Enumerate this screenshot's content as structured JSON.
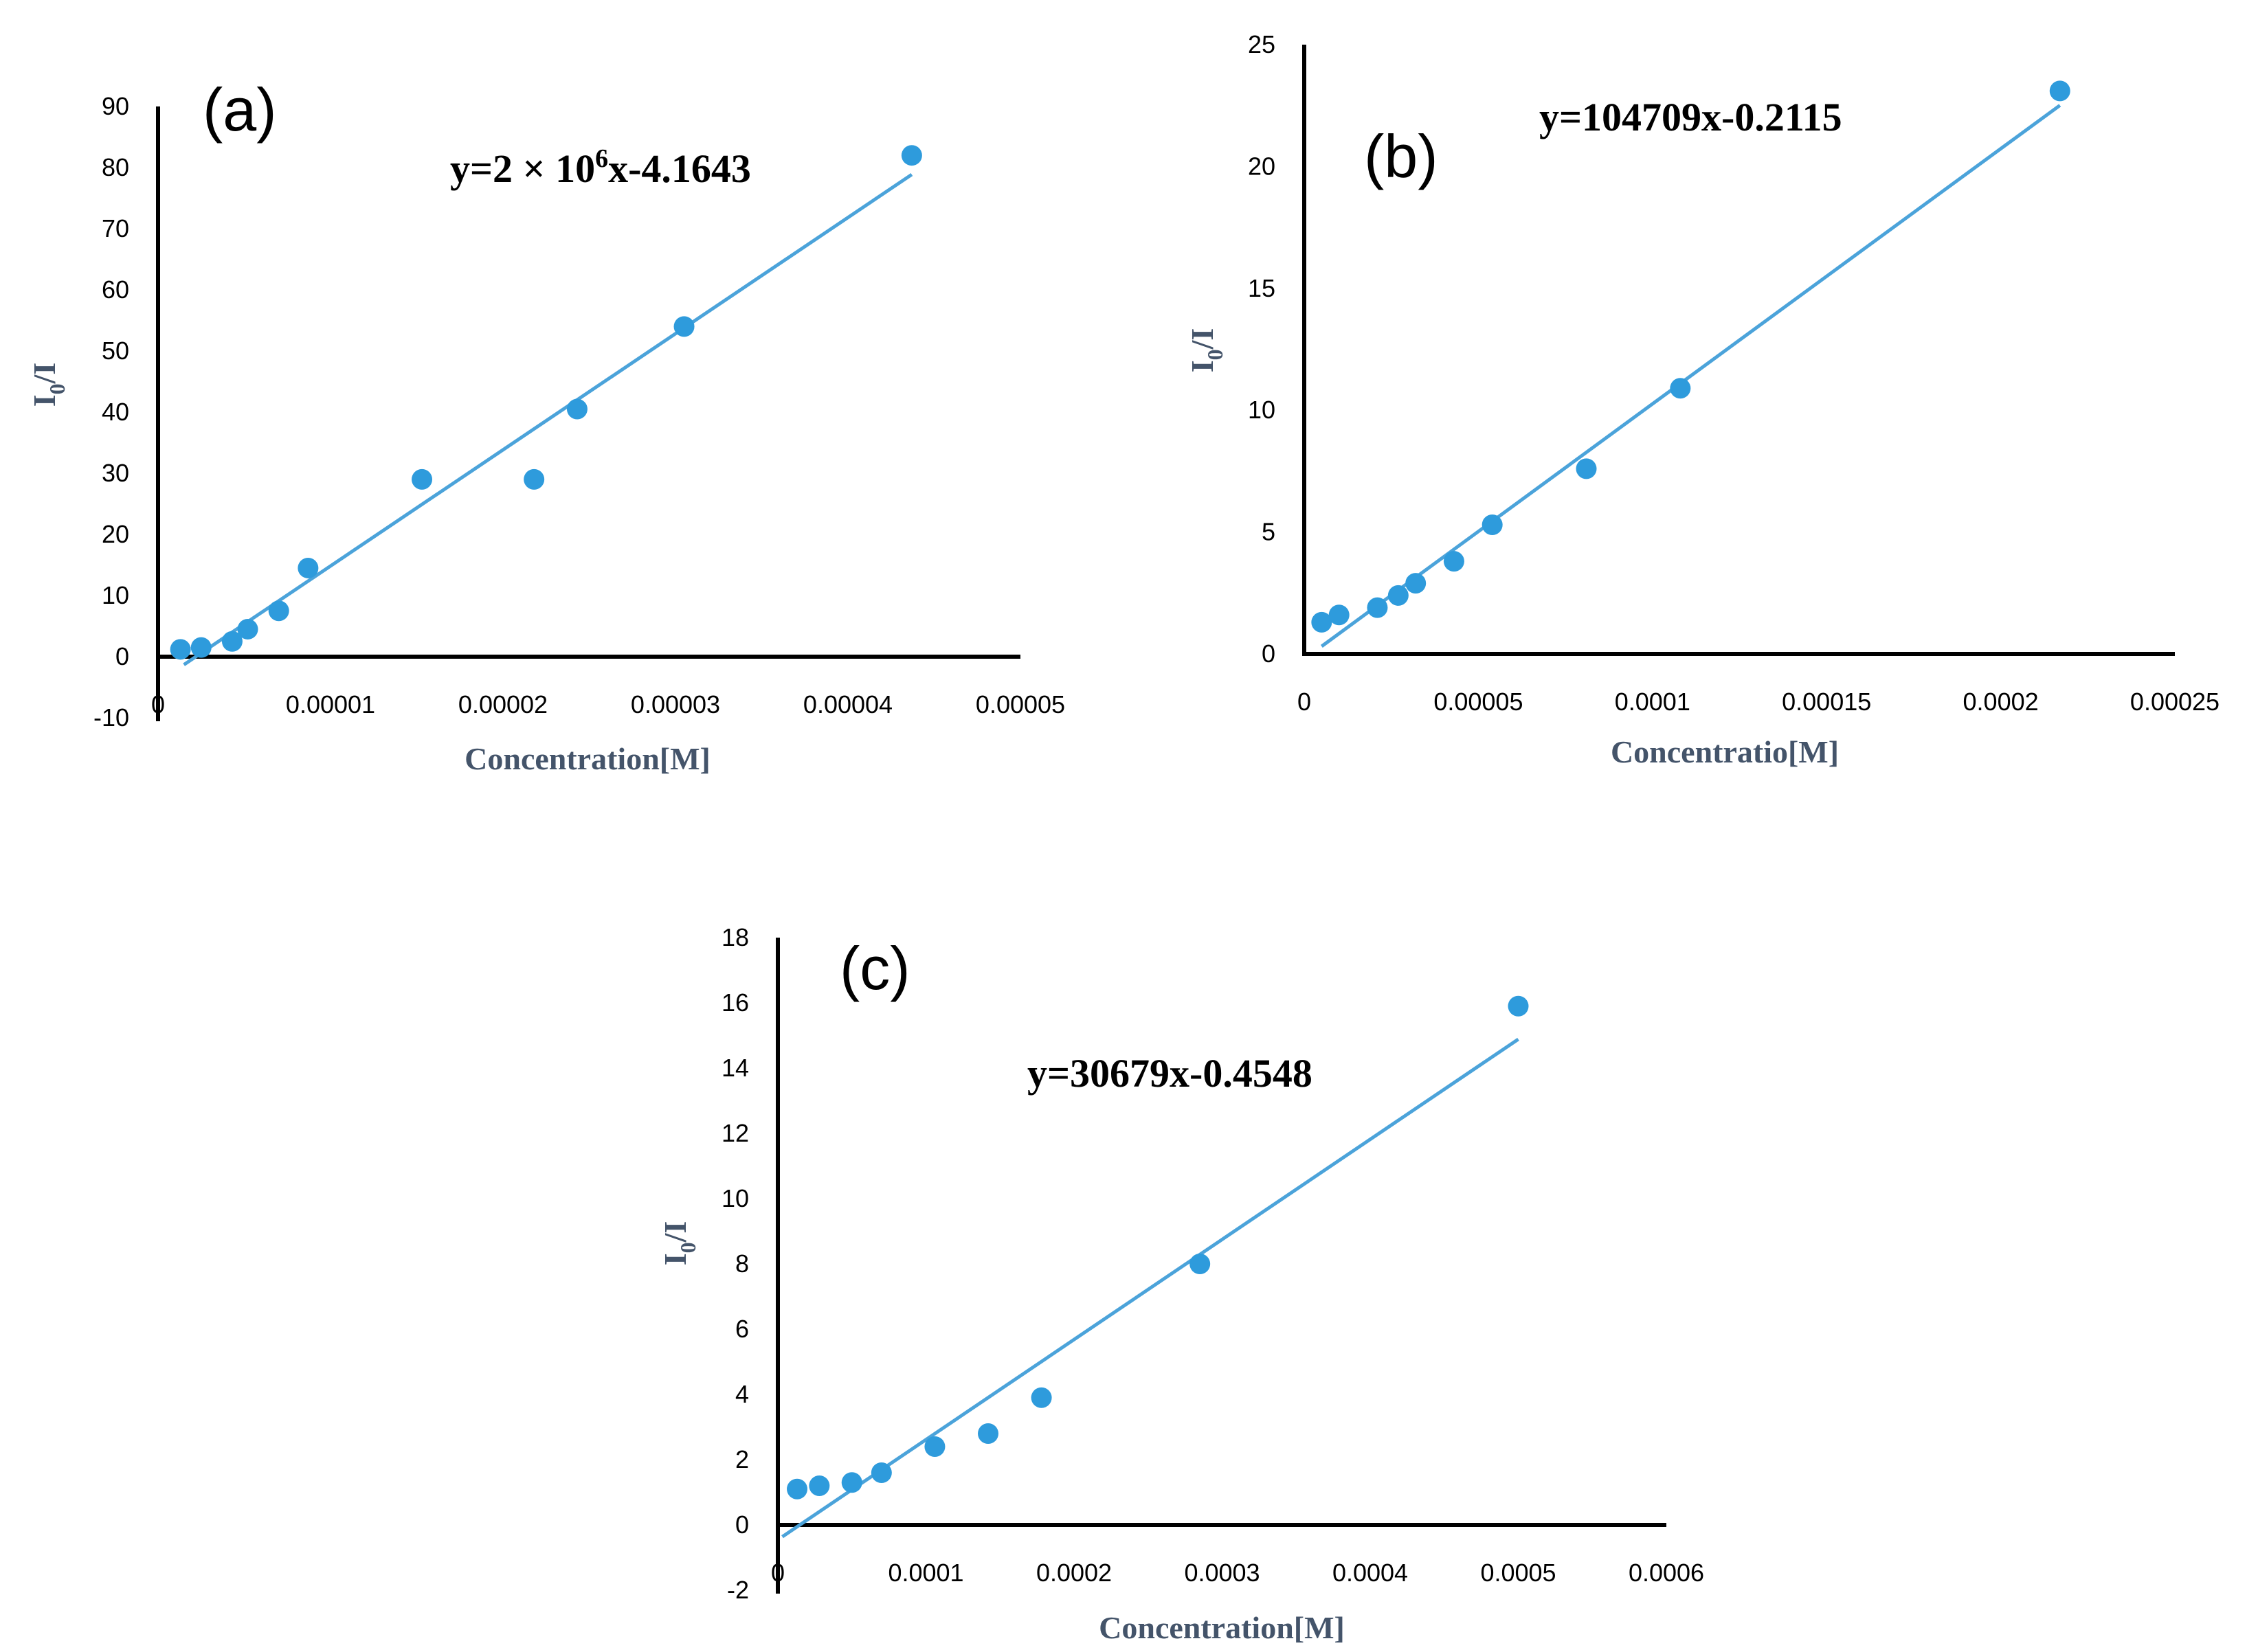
{
  "chart_data": [
    {
      "type": "scatter",
      "panel_label": "(a)",
      "equation": {
        "prefix": "y=2 × 10",
        "superscript": "6",
        "suffix": "x-4.1643"
      },
      "xlabel": "Concentration[M]",
      "ylabel": {
        "main": "I",
        "sub": "0",
        "rest": "/I"
      },
      "xlim": [
        0,
        5e-05
      ],
      "ylim": [
        -10,
        90
      ],
      "x_ticks": [
        0,
        1e-05,
        2e-05,
        3e-05,
        4e-05,
        5e-05
      ],
      "x_tick_labels": [
        "0",
        "0.00001",
        "0.00002",
        "0.00003",
        "0.00004",
        "0.00005"
      ],
      "y_ticks": [
        -10,
        0,
        10,
        20,
        30,
        40,
        50,
        60,
        70,
        80,
        90
      ],
      "y_tick_labels": [
        "-10",
        "0",
        "10",
        "20",
        "30",
        "40",
        "50",
        "60",
        "70",
        "80",
        "90"
      ],
      "x_axis_at": 0,
      "points": [
        {
          "x": 1.3e-06,
          "y": 1.2
        },
        {
          "x": 2.5e-06,
          "y": 1.5
        },
        {
          "x": 4.3e-06,
          "y": 2.5
        },
        {
          "x": 5.2e-06,
          "y": 4.5
        },
        {
          "x": 7e-06,
          "y": 7.5
        },
        {
          "x": 8.7e-06,
          "y": 14.5
        },
        {
          "x": 1.53e-05,
          "y": 29
        },
        {
          "x": 2.18e-05,
          "y": 29
        },
        {
          "x": 2.43e-05,
          "y": 40.5
        },
        {
          "x": 3.05e-05,
          "y": 54
        },
        {
          "x": 4.37e-05,
          "y": 82
        }
      ],
      "fit": {
        "slope": 1900000,
        "intercept": -4.1643,
        "x_range": [
          1.5e-06,
          4.37e-05
        ]
      }
    },
    {
      "type": "scatter",
      "panel_label": "(b)",
      "equation": {
        "prefix": "y=104709x-0.2115",
        "superscript": "",
        "suffix": ""
      },
      "xlabel": "Concentratio[M]",
      "ylabel": {
        "main": "I",
        "sub": "0",
        "rest": "/I"
      },
      "xlim": [
        0,
        0.00025
      ],
      "ylim": [
        0,
        25
      ],
      "x_ticks": [
        0,
        5e-05,
        0.0001,
        0.00015,
        0.0002,
        0.00025
      ],
      "x_tick_labels": [
        "0",
        "0.00005",
        "0.0001",
        "0.00015",
        "0.0002",
        "0.00025"
      ],
      "y_ticks": [
        0,
        5,
        10,
        15,
        20,
        25
      ],
      "y_tick_labels": [
        "0",
        "5",
        "10",
        "15",
        "20",
        "25"
      ],
      "x_axis_at": 0,
      "points": [
        {
          "x": 5e-06,
          "y": 1.3
        },
        {
          "x": 1e-05,
          "y": 1.6
        },
        {
          "x": 2.1e-05,
          "y": 1.9
        },
        {
          "x": 2.7e-05,
          "y": 2.4
        },
        {
          "x": 3.2e-05,
          "y": 2.9
        },
        {
          "x": 4.3e-05,
          "y": 3.8
        },
        {
          "x": 5.4e-05,
          "y": 5.3
        },
        {
          "x": 8.1e-05,
          "y": 7.6
        },
        {
          "x": 0.000108,
          "y": 10.9
        },
        {
          "x": 0.000217,
          "y": 23.1
        }
      ],
      "fit": {
        "slope": 104709,
        "intercept": -0.2115,
        "x_range": [
          5e-06,
          0.000217
        ]
      }
    },
    {
      "type": "scatter",
      "panel_label": "(c)",
      "equation": {
        "prefix": "y=30679x-0.4548",
        "superscript": "",
        "suffix": ""
      },
      "xlabel": "Concentration[M]",
      "ylabel": {
        "main": "I",
        "sub": "0",
        "rest": "/I"
      },
      "xlim": [
        0,
        0.0006
      ],
      "ylim": [
        -2,
        18
      ],
      "x_ticks": [
        0,
        0.0001,
        0.0002,
        0.0003,
        0.0004,
        0.0005,
        0.0006
      ],
      "x_tick_labels": [
        "0",
        "0.0001",
        "0.0002",
        "0.0003",
        "0.0004",
        "0.0005",
        "0.0006"
      ],
      "y_ticks": [
        -2,
        0,
        2,
        4,
        6,
        8,
        10,
        12,
        14,
        16,
        18
      ],
      "y_tick_labels": [
        "-2",
        "0",
        "2",
        "4",
        "6",
        "8",
        "10",
        "12",
        "14",
        "16",
        "18"
      ],
      "x_axis_at": 0,
      "points": [
        {
          "x": 1.3e-05,
          "y": 1.1
        },
        {
          "x": 2.8e-05,
          "y": 1.2
        },
        {
          "x": 5e-05,
          "y": 1.3
        },
        {
          "x": 7e-05,
          "y": 1.6
        },
        {
          "x": 0.000106,
          "y": 2.4
        },
        {
          "x": 0.000142,
          "y": 2.8
        },
        {
          "x": 0.000178,
          "y": 3.9
        },
        {
          "x": 0.000285,
          "y": 8.0
        },
        {
          "x": 0.0005,
          "y": 15.9
        }
      ],
      "fit": {
        "slope": 30679,
        "intercept": -0.4548,
        "x_range": [
          3e-06,
          0.0005
        ]
      }
    }
  ]
}
